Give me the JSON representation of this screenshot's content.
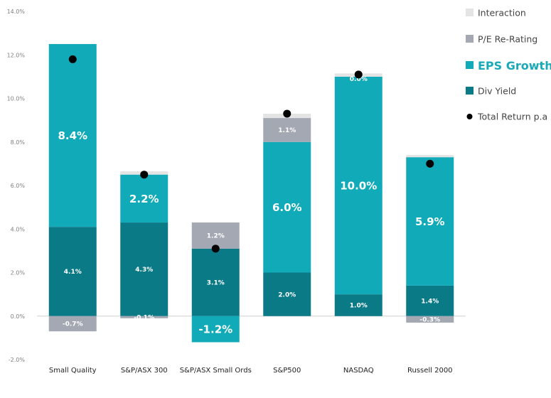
{
  "chart_data": {
    "type": "bar",
    "stacked": true,
    "categories": [
      "Small Quality",
      "S&P/ASX 300",
      "S&P/ASX Small Ords",
      "S&P500",
      "NASDAQ",
      "Russell 2000"
    ],
    "ylim": [
      -2.0,
      14.0
    ],
    "yticks": [
      "-2.0%",
      "0.0%",
      "2.0%",
      "4.0%",
      "6.0%",
      "8.0%",
      "10.0%",
      "12.0%",
      "14.0%"
    ],
    "ytick_values": [
      -2,
      0,
      2,
      4,
      6,
      8,
      10,
      12,
      14
    ],
    "grid": false,
    "legend_position": "right",
    "series": [
      {
        "name": "Div Yield",
        "color": "#0b7a87",
        "values": [
          4.1,
          4.3,
          3.1,
          2.0,
          1.0,
          1.4
        ],
        "labels": [
          "4.1%",
          "4.3%",
          "3.1%",
          "2.0%",
          "1.0%",
          "1.4%"
        ]
      },
      {
        "name": "EPS Growth",
        "color": "#10aab9",
        "values": [
          8.4,
          2.2,
          -1.2,
          6.0,
          10.0,
          5.9
        ],
        "labels": [
          "8.4%",
          "2.2%",
          "-1.2%",
          "6.0%",
          "10.0%",
          "5.9%"
        ]
      },
      {
        "name": "P/E Re-Rating",
        "color": "#a3a8b3",
        "values": [
          -0.7,
          -0.1,
          1.2,
          1.1,
          0.0,
          -0.3
        ],
        "labels": [
          "-0.7%",
          "-0.1%",
          "1.2%",
          "1.1%",
          "0.0%",
          "-0.3%"
        ]
      },
      {
        "name": "Interaction",
        "color": "#e4e4e4",
        "values": [
          0.0,
          0.15,
          0.0,
          0.2,
          0.15,
          0.1
        ]
      }
    ],
    "total_return": {
      "name": "Total Return p.a",
      "color": "#000000",
      "values": [
        11.8,
        6.5,
        3.1,
        9.3,
        11.1,
        7.0
      ]
    },
    "legend": [
      {
        "label": "Interaction",
        "marker": "square",
        "color": "#e4e4e4"
      },
      {
        "label": "P/E Re-Rating",
        "marker": "square",
        "color": "#a3a8b3"
      },
      {
        "label": "EPS Growth",
        "marker": "square",
        "color": "#10aab9",
        "emphasis": true
      },
      {
        "label": "Div Yield",
        "marker": "square",
        "color": "#0b7a87"
      },
      {
        "label": "Total Return p.a",
        "marker": "dot",
        "color": "#000000"
      }
    ]
  }
}
